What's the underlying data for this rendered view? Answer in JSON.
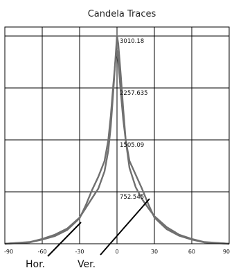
{
  "chart_data": {
    "type": "line",
    "title": "Candela Traces",
    "xlim": [
      -90,
      90
    ],
    "ylim": [
      0,
      3010.18
    ],
    "x_ticks": [
      "-90",
      "-60",
      "-30",
      "0",
      "30",
      "60",
      "90"
    ],
    "y_tick_labels": [
      "3010.18",
      "2257.635",
      "1505.09",
      "752.545"
    ],
    "grid": true,
    "series": [
      {
        "name": "Hor.",
        "x": [
          -90,
          -70,
          -60,
          -50,
          -40,
          -30,
          -25,
          -20,
          -15,
          -10,
          -7,
          -5,
          -3,
          -1,
          0,
          1,
          3,
          5,
          7,
          10,
          15,
          20,
          25,
          30,
          40,
          50,
          60,
          70,
          90
        ],
        "y": [
          0,
          20,
          60,
          110,
          200,
          370,
          560,
          780,
          970,
          1200,
          1500,
          1850,
          2300,
          2700,
          2800,
          2650,
          2200,
          1800,
          1500,
          1200,
          1000,
          800,
          580,
          380,
          210,
          115,
          60,
          20,
          0
        ]
      },
      {
        "name": "Ver.",
        "x": [
          -90,
          -70,
          -60,
          -50,
          -40,
          -30,
          -25,
          -20,
          -15,
          -10,
          -7,
          -5,
          -3,
          -1,
          0,
          1,
          3,
          5,
          7,
          10,
          15,
          20,
          25,
          30,
          40,
          50,
          60,
          70,
          90
        ],
        "y": [
          0,
          25,
          70,
          130,
          220,
          380,
          520,
          660,
          800,
          1050,
          1350,
          1700,
          2200,
          2750,
          3010,
          2900,
          2450,
          1950,
          1500,
          1100,
          820,
          650,
          520,
          400,
          240,
          130,
          70,
          25,
          0
        ]
      }
    ]
  }
}
